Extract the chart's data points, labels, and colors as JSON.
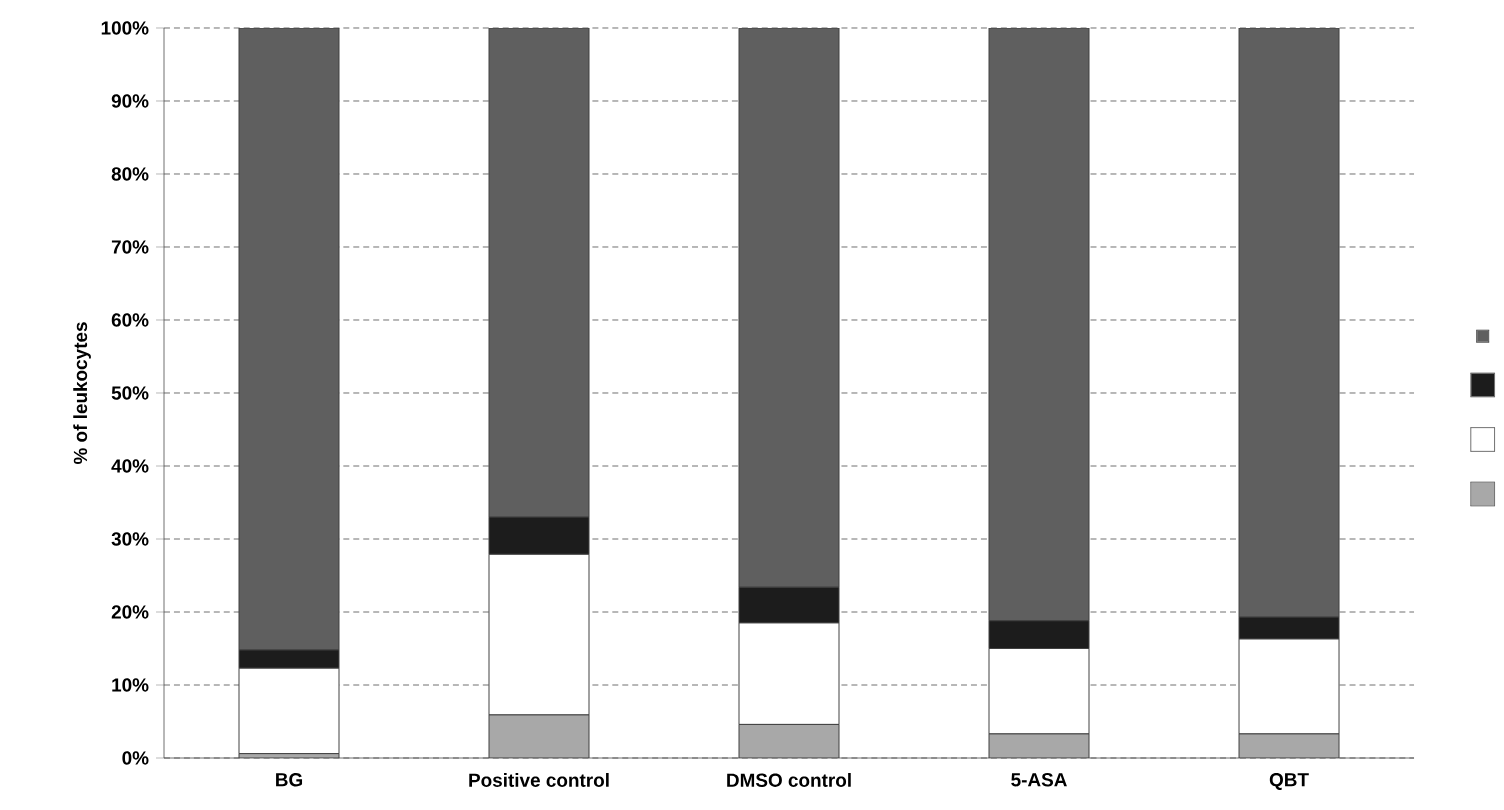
{
  "chart_data": {
    "type": "bar",
    "stacked": true,
    "ylabel": "% of leukocytes",
    "categories": [
      "BG",
      "Positive control",
      "DMSO control",
      "5-ASA",
      "QBT"
    ],
    "series": [
      {
        "color": "#a8a8a8",
        "values": [
          0.6,
          5.9,
          4.6,
          3.3,
          3.3
        ]
      },
      {
        "color": "#ffffff",
        "values": [
          11.7,
          22.0,
          13.9,
          11.7,
          13.0
        ]
      },
      {
        "color": "#1c1c1c",
        "values": [
          2.5,
          5.1,
          4.9,
          3.8,
          3.0
        ]
      },
      {
        "color": "#5f5f5f",
        "values": [
          85.2,
          67.0,
          76.6,
          81.2,
          80.7
        ]
      }
    ],
    "ylim": [
      0,
      100
    ],
    "yticks": [
      {
        "value": 0,
        "label": "0%"
      },
      {
        "value": 10,
        "label": "10%"
      },
      {
        "value": 20,
        "label": "20%"
      },
      {
        "value": 30,
        "label": "30%"
      },
      {
        "value": 40,
        "label": "40%"
      },
      {
        "value": 50,
        "label": "50%"
      },
      {
        "value": 60,
        "label": "60%"
      },
      {
        "value": 70,
        "label": "70%"
      },
      {
        "value": 80,
        "label": "80%"
      },
      {
        "value": 90,
        "label": "90%"
      },
      {
        "value": 100,
        "label": "100%"
      }
    ],
    "grid": "y"
  }
}
